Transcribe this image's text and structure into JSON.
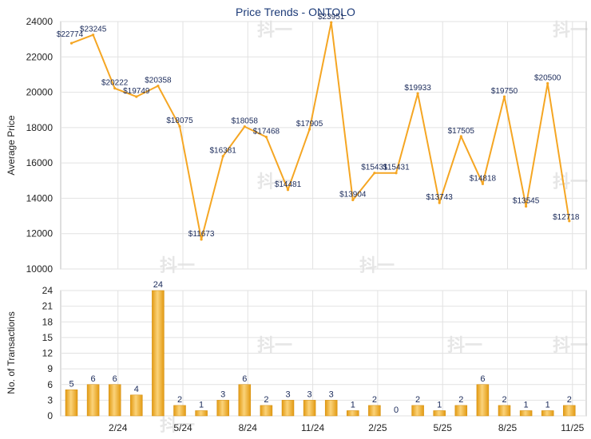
{
  "chart_data": [
    {
      "type": "line",
      "title": "Price Trends - ONTOLO",
      "ylabel": "Average Price",
      "ylim": [
        10000,
        24000
      ],
      "yticks": [
        "10000",
        "12000",
        "14000",
        "16000",
        "18000",
        "20000",
        "22000",
        "24000"
      ],
      "grid": true,
      "line_color": "#f5a623",
      "values": [
        22774,
        23245,
        20222,
        19749,
        20358,
        18075,
        11673,
        16381,
        18058,
        17468,
        14481,
        17905,
        23951,
        13904,
        15431,
        15431,
        19933,
        13743,
        17505,
        14818,
        19750,
        13545,
        20500,
        12718
      ],
      "labels": [
        "$22774",
        "$23245",
        "$20222",
        "$19749",
        "$20358",
        "$18075",
        "$11673",
        "$16381",
        "$18058",
        "$17468",
        "$14481",
        "$17905",
        "$23951",
        "$13904",
        "$15431",
        "$15431",
        "$19933",
        "$13743",
        "$17505",
        "$14818",
        "$19750",
        "$13545",
        "$20500",
        "$12718"
      ]
    },
    {
      "type": "bar",
      "ylabel": "No. of Transactions",
      "ylim": [
        0,
        24
      ],
      "yticks": [
        "0",
        "3",
        "6",
        "9",
        "12",
        "15",
        "18",
        "21",
        "24"
      ],
      "grid": true,
      "bar_color": "#f2b22f",
      "values": [
        5,
        6,
        6,
        4,
        24,
        2,
        1,
        3,
        6,
        2,
        3,
        3,
        3,
        1,
        2,
        0,
        2,
        1,
        2,
        6,
        2,
        1,
        1,
        2
      ],
      "x_tick_labels": [
        "2/24",
        "5/24",
        "8/24",
        "11/24",
        "2/25",
        "5/25",
        "8/25",
        "11/25"
      ]
    }
  ],
  "watermark": "抖一"
}
